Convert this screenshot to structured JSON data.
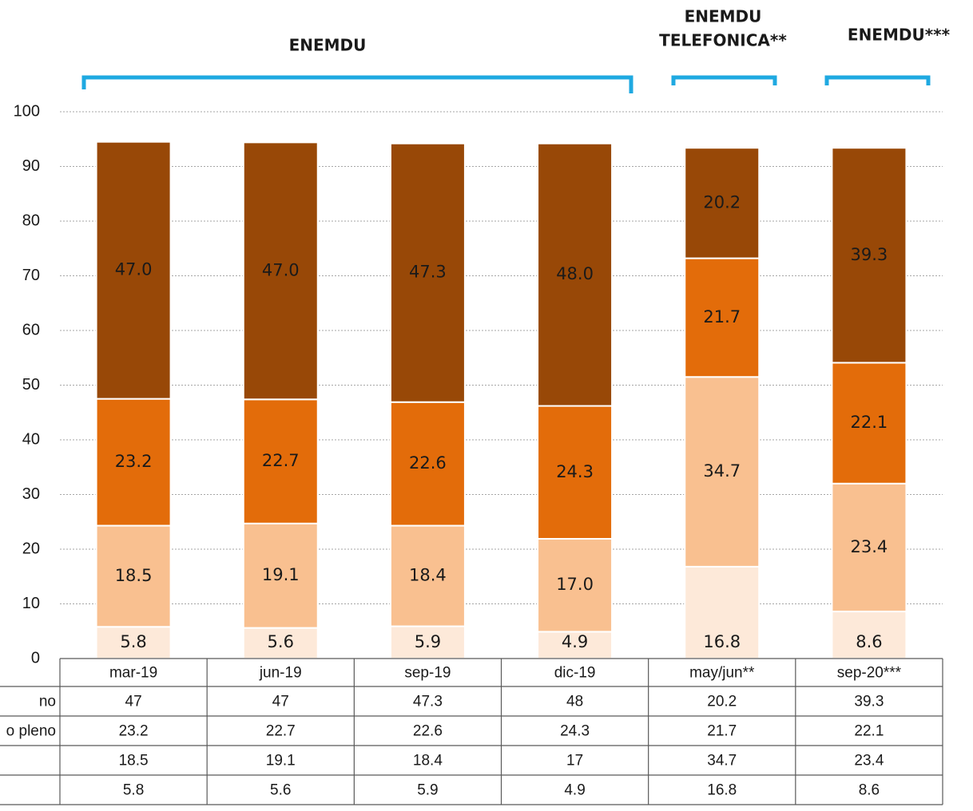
{
  "chart_data": {
    "type": "stacked_bar",
    "categories": [
      "mar-19",
      "jun-19",
      "sep-19",
      "dic-19",
      "may/jun**",
      "sep-20***"
    ],
    "series": [
      {
        "name": null,
        "color": "#fde9d9",
        "values": [
          5.8,
          5.6,
          5.9,
          4.9,
          16.8,
          8.6
        ]
      },
      {
        "name": null,
        "color": "#f9c090",
        "values": [
          18.5,
          19.1,
          18.4,
          17,
          34.7,
          23.4
        ],
        "value_labels": [
          "18.5",
          "19.1",
          "18.4",
          "17.0",
          "34.7",
          "23.4"
        ]
      },
      {
        "name": "o pleno",
        "color": "#e36c0a",
        "values": [
          23.2,
          22.7,
          22.6,
          24.3,
          21.7,
          22.1
        ]
      },
      {
        "name": "no",
        "color": "#984807",
        "values": [
          47,
          47,
          47.3,
          48,
          20.2,
          39.3
        ],
        "value_labels": [
          "47.0",
          "47.0",
          "47.3",
          "48.0",
          "20.2",
          "39.3"
        ]
      }
    ],
    "ylim": [
      0,
      100
    ],
    "yticks": [
      0,
      10,
      20,
      30,
      40,
      50,
      60,
      70,
      80,
      90,
      100
    ],
    "grid": true,
    "annotations": [
      [
        "ENEMDU"
      ],
      [
        "ENEMDU",
        "TELEFONICA**"
      ],
      [
        "ENEMDU***"
      ]
    ]
  }
}
